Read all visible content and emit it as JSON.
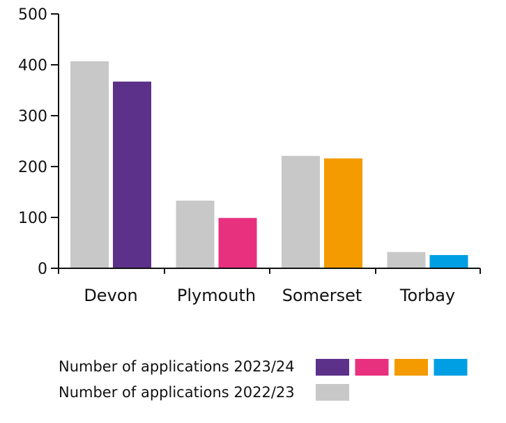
{
  "chart_data": {
    "type": "bar",
    "categories": [
      "Devon",
      "Plymouth",
      "Somerset",
      "Torbay"
    ],
    "series": [
      {
        "name": "Number of applications 2022/23",
        "values": [
          407,
          133,
          221,
          32
        ],
        "colors": [
          "#c8c8c8",
          "#c8c8c8",
          "#c8c8c8",
          "#c8c8c8"
        ]
      },
      {
        "name": "Number of applications 2023/24",
        "values": [
          367,
          99,
          216,
          26
        ],
        "colors": [
          "#5c3189",
          "#e8317e",
          "#f39b00",
          "#009fe3"
        ]
      }
    ],
    "yticks": [
      0,
      100,
      200,
      300,
      400,
      500
    ],
    "ylim": [
      0,
      500
    ],
    "xlabel": "",
    "ylabel": "",
    "title": "",
    "grid": false,
    "legend_position": "bottom"
  }
}
